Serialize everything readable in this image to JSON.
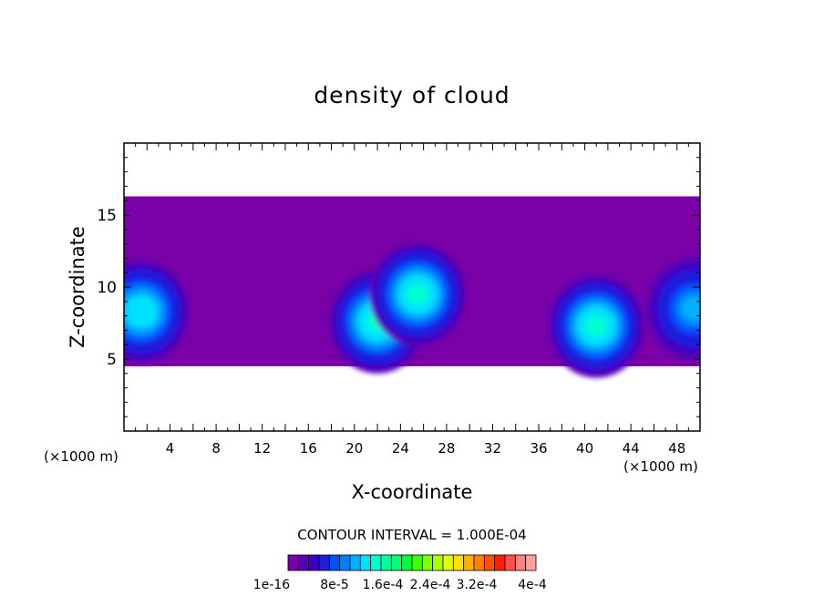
{
  "chart_data": {
    "type": "heatmap",
    "title": "density of cloud",
    "xlabel": "X-coordinate",
    "ylabel": "Z-coordinate",
    "x_unit_label": "(×1000 m)",
    "xlim": [
      0,
      50
    ],
    "ylim": [
      0,
      20
    ],
    "x_ticks": [
      4,
      8,
      12,
      16,
      20,
      24,
      28,
      32,
      36,
      40,
      44,
      48
    ],
    "y_ticks": [
      5,
      10,
      15
    ],
    "contour_interval_text": "CONTOUR INTERVAL = 1.000E-04",
    "colorbar_labels": [
      "1e-16",
      "8e-5",
      "1.6e-4",
      "2.4e-4",
      "3.2e-4",
      "4e-4"
    ],
    "colorbar_colors": [
      "#7a00a8",
      "#5a00b4",
      "#3c00c8",
      "#1e1edc",
      "#0050ff",
      "#0080ff",
      "#00b0ff",
      "#00e0ff",
      "#00ffd0",
      "#00ffa0",
      "#00ff70",
      "#00ff30",
      "#40ff00",
      "#80ff00",
      "#b0ff00",
      "#e0ff00",
      "#ffe000",
      "#ffb000",
      "#ff8000",
      "#ff5000",
      "#ff2000",
      "#ff5050",
      "#ff8080",
      "#ffa0a0"
    ],
    "field": {
      "cloud_layer_z": [
        4.5,
        16.3
      ],
      "cores": [
        {
          "x": 1.5,
          "z": 8.3,
          "level": 0.9
        },
        {
          "x": 22.0,
          "z": 7.6,
          "level": 1.0
        },
        {
          "x": 25.5,
          "z": 9.5,
          "level": 1.0
        },
        {
          "x": 41.0,
          "z": 7.3,
          "level": 1.0
        },
        {
          "x": 49.5,
          "z": 8.5,
          "level": 0.7
        }
      ]
    }
  }
}
